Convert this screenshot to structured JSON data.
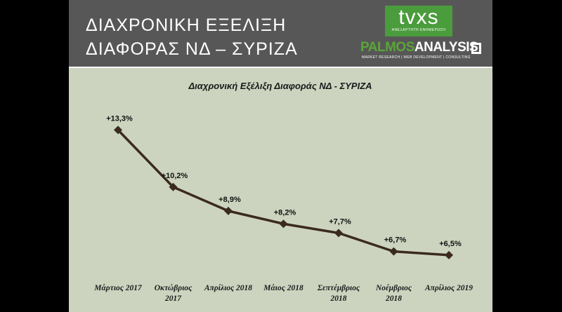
{
  "header": {
    "title_line1": "ΔΙΑΧΡΟΝΙΚΗ ΕΞΕΛΙΞΗ",
    "title_line2": "ΔΙΑΦΟΡΑΣ ΝΔ – ΣΥΡΙΖΑ",
    "tvxs_logo": "tvxs",
    "tvxs_tagline": "ΑΝΕΞΑΡΤΗΤΗ ΕΝΗΜΕΡΩΣΗ",
    "palmos_part1": "PALMOS",
    "palmos_part2": "ANALYSIS",
    "palmos_tagline": "MARKET RESEARCH | WEB DEVELOPMENT | CONSULTING"
  },
  "colors": {
    "header_bg": "#575757",
    "plot_bg": "#ccd4bf",
    "line": "#3b2a1e",
    "tvxs_green": "#4a9c3c"
  },
  "chart_data": {
    "type": "line",
    "title": "Διαχρονική Εξέλιξη Διαφοράς ΝΔ - ΣΥΡΙΖΑ",
    "categories": [
      [
        "Μάρτιος 2017"
      ],
      [
        "Οκτώβριος",
        "2017"
      ],
      [
        "Απρίλιος 2018"
      ],
      [
        "Μάιος 2018"
      ],
      [
        "Σεπτέμβριος",
        "2018"
      ],
      [
        "Νοέμβριος",
        "2018"
      ],
      [
        "Απρίλιος 2019"
      ]
    ],
    "values": [
      13.3,
      10.2,
      8.9,
      8.2,
      7.7,
      6.7,
      6.5
    ],
    "labels": [
      "+13,3%",
      "+10,2%",
      "+8,9%",
      "+8,2%",
      "+7,7%",
      "+6,7%",
      "+6,5%"
    ],
    "ylim": [
      6.0,
      14.0
    ],
    "grid": false,
    "marker": "diamond"
  }
}
